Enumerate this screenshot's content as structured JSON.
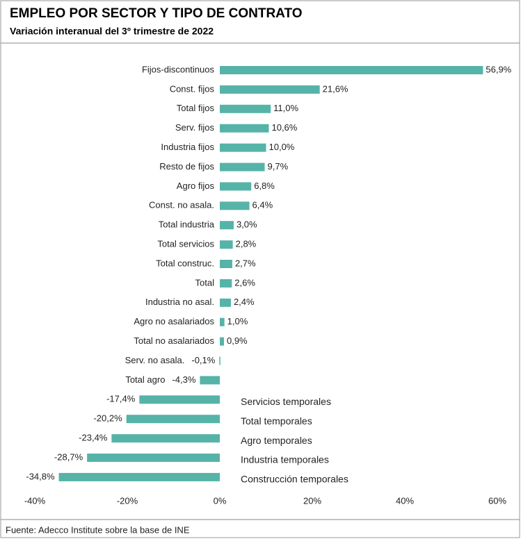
{
  "chart_data": {
    "type": "barh",
    "title": "EMPLEO POR SECTOR Y TIPO DE CONTRATO",
    "subtitle": "Variación interanual del 3º trimestre de 2022",
    "source": "Fuente: Adecco Institute sobre la base de INE",
    "categories": [
      "Fijos-discontinuos",
      "Const. fijos",
      "Total fijos",
      "Serv. fijos",
      "Industria fijos",
      "Resto de fijos",
      "Agro fijos",
      "Const. no asala.",
      "Total industria",
      "Total servicios",
      "Total construc.",
      "Total",
      "Industria no asal.",
      "Agro no asalariados",
      "Total no asalariados",
      "Serv. no asala.",
      "Total agro",
      "Servicios temporales",
      "Total temporales",
      "Agro temporales",
      "Industria temporales",
      "Construcción temporales"
    ],
    "values": [
      56.9,
      21.6,
      11.0,
      10.6,
      10.0,
      9.7,
      6.8,
      6.4,
      3.0,
      2.8,
      2.7,
      2.6,
      2.4,
      1.0,
      0.9,
      -0.1,
      -4.3,
      -17.4,
      -20.2,
      -23.4,
      -28.7,
      -34.8
    ],
    "value_labels": [
      "56,9%",
      "21,6%",
      "11,0%",
      "10,6%",
      "10,0%",
      "9,7%",
      "6,8%",
      "6,4%",
      "3,0%",
      "2,8%",
      "2,7%",
      "2,6%",
      "2,4%",
      "1,0%",
      "0,9%",
      "-0,1%",
      "-4,3%",
      "-17,4%",
      "-20,2%",
      "-23,4%",
      "-28,7%",
      "-34,8%"
    ],
    "color": "#55b4a7",
    "negative_label_color": "#ff0000",
    "xlim": [
      -40,
      60
    ],
    "xticks": [
      {
        "value": -40,
        "label": "-40%"
      },
      {
        "value": -20,
        "label": "-20%"
      },
      {
        "value": 0,
        "label": "0%"
      },
      {
        "value": 20,
        "label": "20%"
      },
      {
        "value": 40,
        "label": "40%"
      },
      {
        "value": 60,
        "label": "60%"
      }
    ],
    "grid": false
  }
}
